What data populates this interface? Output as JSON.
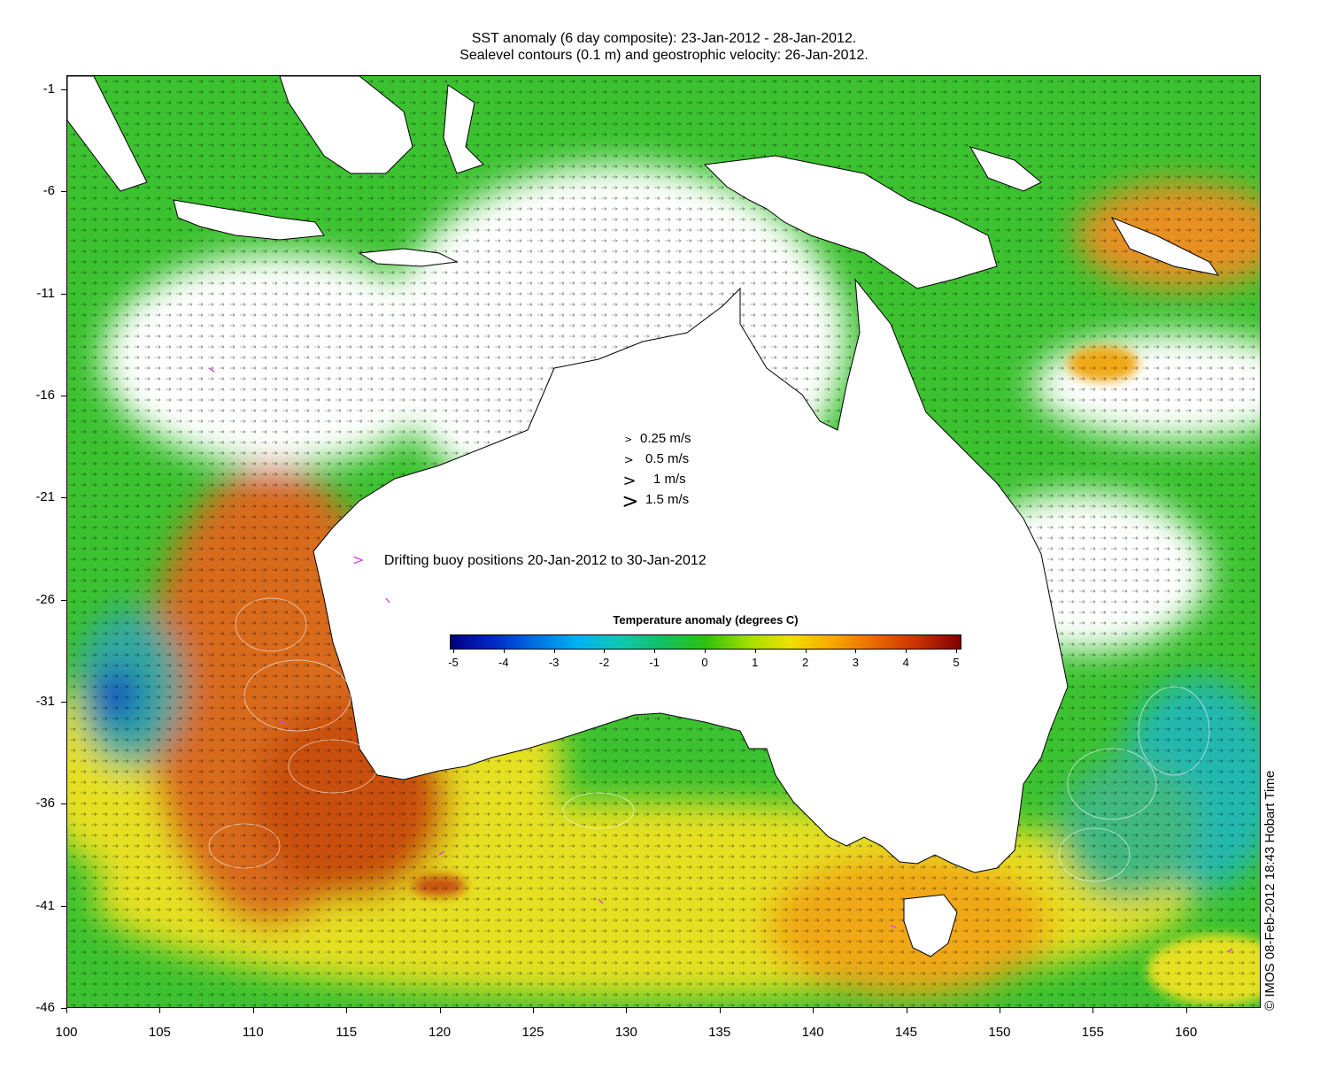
{
  "title": {
    "line1": "SST anomaly (6 day composite): 23-Jan-2012 - 28-Jan-2012.",
    "line2": "Sealevel contours (0.1 m) and geostrophic velocity: 26-Jan-2012."
  },
  "axes": {
    "x_ticks": [
      "100",
      "105",
      "110",
      "115",
      "120",
      "125",
      "130",
      "135",
      "140",
      "145",
      "150",
      "155",
      "160"
    ],
    "y_ticks": [
      "-1",
      "-6",
      "-11",
      "-16",
      "-21",
      "-26",
      "-31",
      "-36",
      "-41",
      "-46"
    ],
    "lon_range": [
      100,
      164
    ],
    "lat_range": [
      -46,
      -0.3
    ]
  },
  "velocity_legend": [
    {
      "label": "0.25 m/s",
      "speed": 0.25
    },
    {
      "label": "0.5 m/s",
      "speed": 0.5
    },
    {
      "label": "1 m/s",
      "speed": 1
    },
    {
      "label": "1.5 m/s",
      "speed": 1.5
    }
  ],
  "buoy_legend": {
    "label": "Drifting buoy positions 20-Jan-2012 to 30-Jan-2012",
    "color": "#e040e0"
  },
  "colorbar": {
    "title": "Temperature anomaly (degrees C)",
    "ticks": [
      "-5",
      "-4",
      "-3",
      "-2",
      "-1",
      "0",
      "1",
      "2",
      "3",
      "4",
      "5"
    ],
    "range": [
      -5,
      5
    ],
    "colors": [
      "#000080",
      "#0028c8",
      "#0070e0",
      "#00b4f0",
      "#10c8b0",
      "#10c060",
      "#30c010",
      "#a0e000",
      "#f0e000",
      "#f8a800",
      "#e86800",
      "#c83000",
      "#800000"
    ]
  },
  "credit": "© IMOS 08-Feb-2012 18:43 Hobart Time",
  "colors": {
    "land": "#ffffff",
    "coast": "#000000",
    "cloud": "#ffffff",
    "anomaly_warm": "#d86a1a",
    "anomaly_neutral": "#3cc230",
    "anomaly_mild": "#e6e020",
    "anomaly_cool": "#20b8b0",
    "anomaly_cold": "#0040c0"
  }
}
